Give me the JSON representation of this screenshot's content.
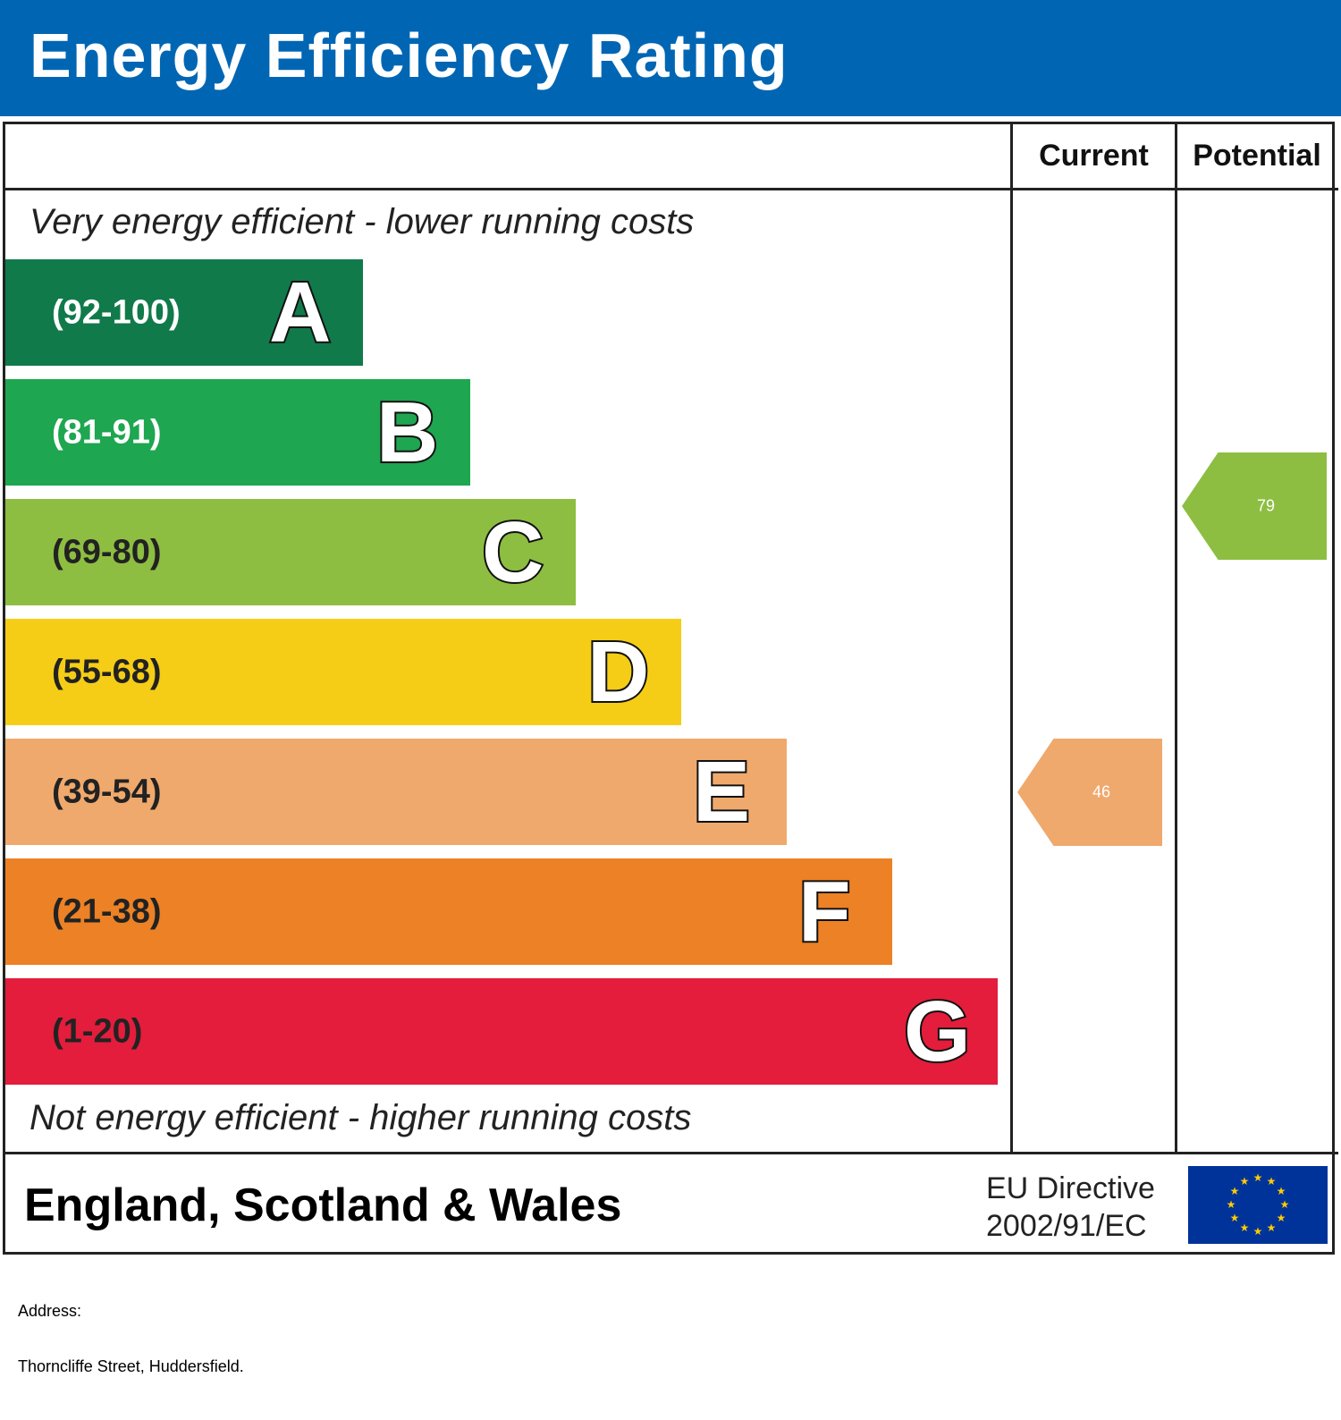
{
  "header": {
    "title": "Energy Efficiency Rating"
  },
  "columns": {
    "current": "Current",
    "potential": "Potential"
  },
  "notes": {
    "top": "Very energy efficient - lower running costs",
    "bottom": "Not energy efficient - higher running costs"
  },
  "chart_data": {
    "type": "bar",
    "title": "Energy Efficiency Rating",
    "bands": [
      {
        "letter": "A",
        "range": "(92-100)",
        "color": "#117a4a",
        "text_color": "#ffffff"
      },
      {
        "letter": "B",
        "range": "(81-91)",
        "color": "#1ea650",
        "text_color": "#ffffff"
      },
      {
        "letter": "C",
        "range": "(69-80)",
        "color": "#8dbe41",
        "text_color": "#222222"
      },
      {
        "letter": "D",
        "range": "(55-68)",
        "color": "#f5cd16",
        "text_color": "#222222"
      },
      {
        "letter": "E",
        "range": "(39-54)",
        "color": "#f0a96c",
        "text_color": "#222222"
      },
      {
        "letter": "F",
        "range": "(21-38)",
        "color": "#ec8125",
        "text_color": "#222222"
      },
      {
        "letter": "G",
        "range": "(1-20)",
        "color": "#e31d3b",
        "text_color": "#222222"
      }
    ],
    "current": {
      "value": "46",
      "band": "E",
      "color": "#f0a96c"
    },
    "potential": {
      "value": "79",
      "band": "C",
      "color": "#8dbe41"
    }
  },
  "footer": {
    "region": "England, Scotland & Wales",
    "directive_line1": "EU Directive",
    "directive_line2": "2002/91/EC",
    "flag_icon": "eu-flag-icon"
  },
  "address": {
    "label": "Address:",
    "value": "Thorncliffe Street, Huddersfield."
  }
}
